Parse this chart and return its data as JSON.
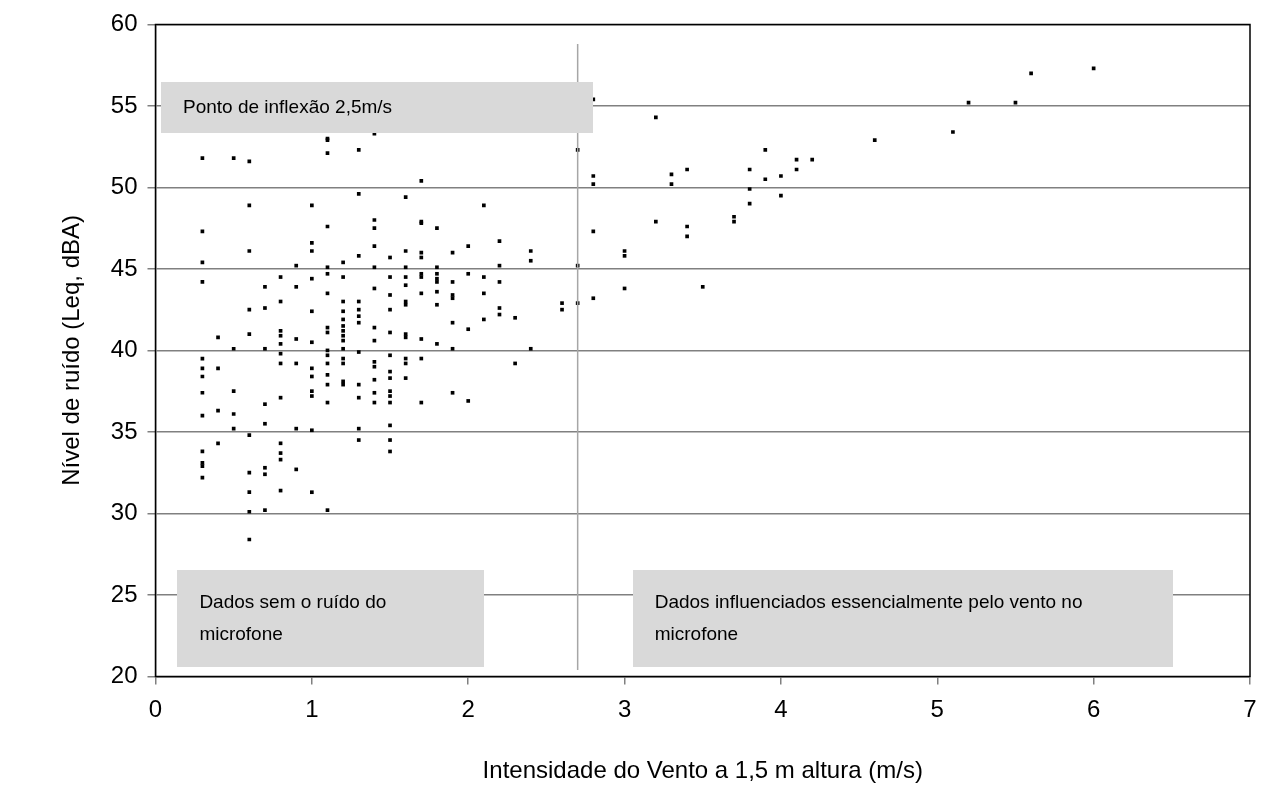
{
  "chart_data": {
    "type": "scatter",
    "xlabel": "Intensidade do Vento a 1,5 m altura (m/s)",
    "ylabel": "Nível de ruído (Leq, dBA)",
    "x": [
      0.3,
      0.3,
      0.3,
      0.3,
      0.3,
      0.3,
      0.3,
      0.3,
      0.3,
      0.3,
      0.3,
      0.3,
      0.3,
      0.4,
      0.4,
      0.4,
      0.4,
      0.5,
      0.5,
      0.5,
      0.5,
      0.5,
      0.6,
      0.6,
      0.6,
      0.6,
      0.6,
      0.6,
      0.6,
      0.6,
      0.6,
      0.6,
      0.7,
      0.7,
      0.7,
      0.7,
      0.7,
      0.7,
      0.7,
      0.7,
      0.8,
      0.8,
      0.8,
      0.8,
      0.8,
      0.8,
      0.8,
      0.8,
      0.8,
      0.8,
      0.8,
      0.8,
      0.9,
      0.9,
      0.9,
      0.9,
      0.9,
      0.9,
      1.0,
      1.0,
      1.0,
      1.0,
      1.0,
      1.0,
      1.0,
      1.0,
      1.0,
      1.0,
      1.0,
      1.0,
      1.1,
      1.1,
      1.1,
      1.1,
      1.1,
      1.1,
      1.1,
      1.1,
      1.1,
      1.1,
      1.1,
      1.1,
      1.1,
      1.1,
      1.1,
      1.1,
      1.2,
      1.2,
      1.2,
      1.2,
      1.2,
      1.2,
      1.2,
      1.2,
      1.2,
      1.2,
      1.2,
      1.2,
      1.2,
      1.2,
      1.3,
      1.3,
      1.3,
      1.3,
      1.3,
      1.3,
      1.3,
      1.3,
      1.3,
      1.3,
      1.3,
      1.3,
      1.4,
      1.4,
      1.4,
      1.4,
      1.4,
      1.4,
      1.4,
      1.4,
      1.4,
      1.4,
      1.4,
      1.4,
      1.4,
      1.5,
      1.5,
      1.5,
      1.5,
      1.5,
      1.5,
      1.5,
      1.5,
      1.5,
      1.5,
      1.5,
      1.5,
      1.5,
      1.5,
      1.6,
      1.6,
      1.6,
      1.6,
      1.6,
      1.6,
      1.6,
      1.6,
      1.6,
      1.6,
      1.6,
      1.6,
      1.7,
      1.7,
      1.7,
      1.7,
      1.7,
      1.7,
      1.7,
      1.7,
      1.7,
      1.7,
      1.7,
      1.8,
      1.8,
      1.8,
      1.8,
      1.8,
      1.8,
      1.8,
      1.8,
      1.9,
      1.9,
      1.9,
      1.9,
      1.9,
      1.9,
      1.9,
      2.0,
      2.0,
      2.0,
      2.0,
      2.1,
      2.1,
      2.1,
      2.1,
      2.2,
      2.2,
      2.2,
      2.2,
      2.2,
      2.3,
      2.3,
      2.4,
      2.4,
      2.4,
      2.6,
      2.6,
      2.7,
      2.7,
      2.7,
      2.8,
      2.8,
      2.8,
      2.8,
      2.8,
      3.0,
      3.0,
      3.0,
      3.2,
      3.2,
      3.3,
      3.3,
      3.4,
      3.4,
      3.4,
      3.5,
      3.7,
      3.7,
      3.8,
      3.8,
      3.8,
      3.9,
      3.9,
      4.0,
      4.0,
      4.1,
      4.1,
      4.2,
      4.6,
      5.1,
      5.2,
      5.5,
      5.6,
      6.0
    ],
    "values": [
      51.8,
      47.3,
      45.4,
      44.2,
      39.5,
      38.9,
      38.4,
      37.4,
      36.0,
      33.8,
      33.1,
      32.9,
      32.2,
      40.8,
      38.9,
      36.3,
      34.3,
      51.8,
      40.1,
      37.5,
      36.1,
      35.2,
      51.6,
      48.9,
      46.1,
      42.5,
      41.0,
      34.8,
      32.5,
      31.3,
      30.1,
      28.4,
      43.9,
      42.6,
      40.1,
      36.7,
      35.5,
      32.8,
      32.4,
      30.2,
      44.5,
      43.0,
      41.2,
      40.9,
      40.4,
      39.8,
      39.2,
      37.1,
      34.3,
      33.7,
      33.3,
      31.4,
      45.2,
      43.9,
      40.7,
      39.2,
      35.2,
      32.7,
      48.9,
      46.6,
      46.1,
      44.4,
      42.4,
      40.5,
      38.9,
      38.4,
      37.5,
      37.2,
      35.1,
      31.3,
      53.0,
      52.9,
      52.1,
      47.6,
      45.1,
      44.7,
      43.5,
      41.4,
      41.1,
      40.0,
      39.7,
      39.2,
      38.5,
      37.9,
      36.8,
      30.2,
      45.4,
      44.5,
      43.0,
      42.4,
      41.9,
      41.5,
      41.2,
      40.9,
      40.6,
      40.1,
      39.5,
      39.2,
      38.1,
      37.9,
      52.3,
      49.6,
      45.8,
      43.0,
      42.5,
      42.1,
      41.7,
      39.9,
      37.9,
      37.1,
      35.2,
      34.5,
      53.3,
      48.0,
      47.5,
      46.4,
      45.1,
      43.8,
      41.4,
      40.6,
      39.3,
      39.0,
      38.2,
      37.4,
      36.8,
      45.7,
      44.5,
      43.4,
      42.5,
      41.1,
      39.7,
      38.7,
      38.3,
      37.5,
      37.2,
      36.8,
      35.4,
      34.5,
      33.8,
      49.4,
      46.1,
      45.1,
      44.5,
      44.0,
      43.0,
      42.8,
      41.0,
      40.8,
      39.5,
      39.2,
      38.3,
      50.4,
      47.9,
      47.8,
      46.0,
      45.7,
      44.7,
      44.5,
      43.5,
      40.7,
      39.5,
      36.8,
      47.5,
      45.1,
      44.7,
      44.4,
      44.2,
      43.6,
      42.8,
      40.4,
      46.0,
      44.2,
      43.4,
      43.2,
      41.7,
      40.1,
      37.4,
      46.4,
      44.7,
      41.3,
      36.9,
      48.9,
      44.5,
      43.5,
      41.9,
      46.7,
      45.2,
      44.2,
      42.6,
      42.2,
      42.0,
      39.2,
      46.1,
      45.5,
      40.1,
      42.9,
      42.5,
      52.3,
      45.2,
      42.9,
      55.4,
      50.7,
      50.2,
      47.3,
      43.2,
      46.1,
      45.8,
      43.8,
      54.3,
      47.9,
      50.8,
      50.2,
      51.1,
      47.6,
      47.0,
      43.9,
      48.2,
      47.9,
      51.1,
      49.9,
      49.0,
      52.3,
      50.5,
      50.7,
      49.5,
      51.7,
      51.1,
      51.7,
      52.9,
      53.4,
      55.2,
      55.2,
      57.0,
      57.3
    ],
    "color": "#000000",
    "marker": "square",
    "xlim": [
      0,
      7
    ],
    "xticks": [
      0,
      1,
      2,
      3,
      4,
      5,
      6,
      7
    ],
    "ylim": [
      20,
      60
    ],
    "yticks": [
      20,
      25,
      30,
      35,
      40,
      45,
      50,
      55,
      60
    ],
    "grid": "y",
    "ref_lines": [
      {
        "axis": "x",
        "value": 2.7,
        "color": "#a6a6a6"
      }
    ],
    "annotations": [
      "Ponto de inflexão 2,5m/s",
      "Dados sem o ruído do microfone",
      "Dados influenciados essencialmente pelo vento no microfone"
    ]
  }
}
